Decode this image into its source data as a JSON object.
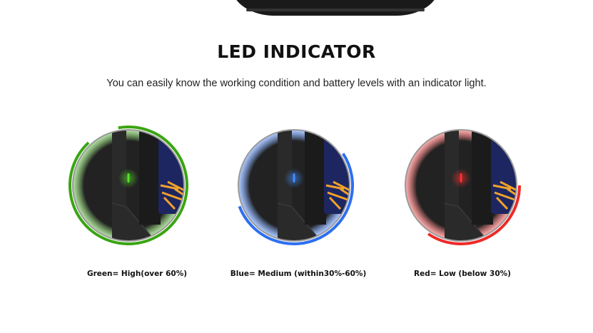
{
  "title": "LED INDICATOR",
  "subtitle": "You can easily know the working condition and battery levels with an indicator light.",
  "indicators": [
    {
      "label": "Green= High(over 60%)",
      "color": "#3aa512",
      "led": "#55e02a"
    },
    {
      "label": "Blue= Medium (within30%-60%)",
      "color": "#2d6ff0",
      "led": "#3f8cff"
    },
    {
      "label": "Red= Low (below 30%)",
      "color": "#ee2a2a",
      "led": "#ff3030"
    }
  ]
}
